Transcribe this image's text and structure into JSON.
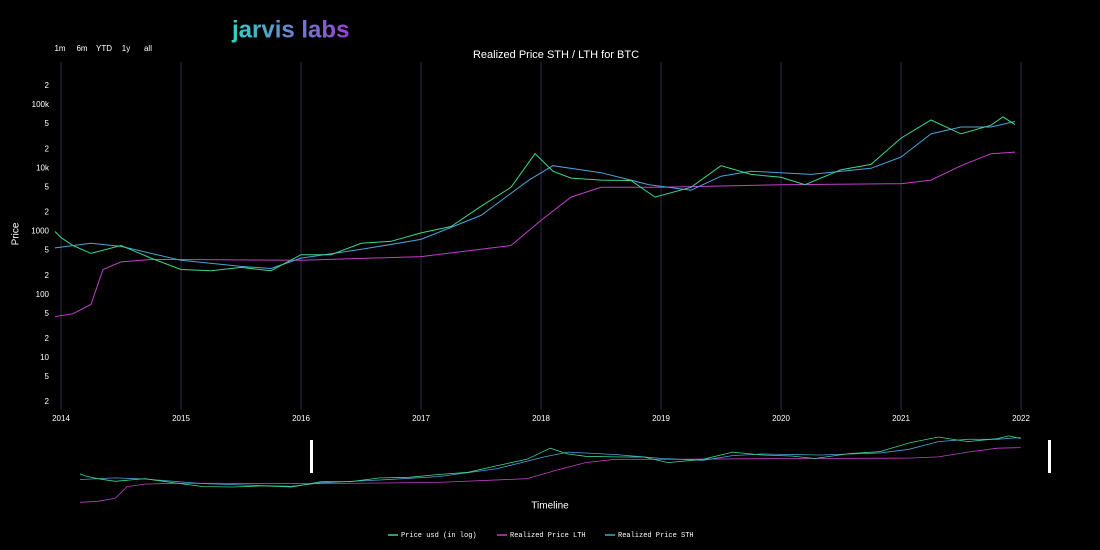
{
  "logo": "jarvis labs",
  "range_buttons": [
    "1m",
    "6m",
    "YTD",
    "1y",
    "all"
  ],
  "chart_data": {
    "type": "line",
    "title": "Realized Price STH / LTH for BTC",
    "y_label": "Price",
    "x_label": "Timeline",
    "y_log": true,
    "grid": "x",
    "legend": "bottom",
    "xlim": [
      2013.95,
      2022.2
    ],
    "xticks": [
      2014,
      2015,
      2016,
      2017,
      2018,
      2019,
      2020,
      2021,
      2022
    ],
    "ylim": [
      1.5,
      480000
    ],
    "yticks": [
      2,
      5,
      10,
      {
        "value": 20,
        "label": "2"
      },
      {
        "value": 50,
        "label": "5"
      },
      100,
      {
        "value": 200,
        "label": "2"
      },
      {
        "value": 500,
        "label": "5"
      },
      1000,
      {
        "value": 2000,
        "label": "2"
      },
      {
        "value": 5000,
        "label": "5"
      },
      {
        "value": 10000,
        "label": "10k"
      },
      {
        "value": 20000,
        "label": "2"
      },
      {
        "value": 50000,
        "label": "5"
      },
      {
        "value": 100000,
        "label": "100k"
      },
      {
        "value": 200000,
        "label": "2"
      }
    ],
    "series": [
      {
        "name": "Price usd (in log)",
        "color": "#3dd68c",
        "x": [
          2013.95,
          2014.0,
          2014.1,
          2014.25,
          2014.5,
          2014.75,
          2015.0,
          2015.25,
          2015.5,
          2015.75,
          2016.0,
          2016.25,
          2016.5,
          2016.75,
          2017.0,
          2017.25,
          2017.5,
          2017.75,
          2017.95,
          2018.1,
          2018.25,
          2018.5,
          2018.75,
          2018.95,
          2019.25,
          2019.5,
          2019.75,
          2020.0,
          2020.2,
          2020.5,
          2020.75,
          2021.0,
          2021.25,
          2021.5,
          2021.75,
          2021.85,
          2021.95
        ],
        "values": [
          1000,
          800,
          600,
          450,
          600,
          380,
          250,
          240,
          270,
          240,
          430,
          430,
          650,
          700,
          950,
          1200,
          2500,
          5000,
          17000,
          9000,
          7000,
          6500,
          6400,
          3500,
          5000,
          11000,
          8000,
          7200,
          5500,
          9500,
          11500,
          30000,
          58000,
          35000,
          48000,
          65000,
          49000
        ]
      },
      {
        "name": "Realized Price LTH",
        "color": "#c23fc7",
        "x": [
          2013.95,
          2014.1,
          2014.25,
          2014.35,
          2014.5,
          2014.75,
          2015.0,
          2016.0,
          2017.0,
          2017.75,
          2018.0,
          2018.25,
          2018.5,
          2019.0,
          2020.0,
          2021.0,
          2021.25,
          2021.5,
          2021.75,
          2021.95
        ],
        "values": [
          45,
          50,
          70,
          250,
          330,
          360,
          360,
          350,
          400,
          600,
          1500,
          3500,
          5000,
          5000,
          5500,
          5700,
          6500,
          11000,
          17000,
          18000
        ]
      },
      {
        "name": "Realized Price STH",
        "color": "#4aa3d9",
        "x": [
          2013.95,
          2014.25,
          2014.5,
          2015.0,
          2015.5,
          2015.75,
          2016.0,
          2016.5,
          2017.0,
          2017.5,
          2017.9,
          2018.1,
          2018.5,
          2018.9,
          2019.25,
          2019.5,
          2019.75,
          2020.25,
          2020.75,
          2021.0,
          2021.25,
          2021.5,
          2021.75,
          2021.95
        ],
        "values": [
          550,
          650,
          580,
          350,
          280,
          260,
          380,
          520,
          750,
          1800,
          6500,
          11000,
          8500,
          5500,
          4500,
          7500,
          9000,
          8000,
          10000,
          15000,
          35000,
          45000,
          45000,
          55000
        ]
      }
    ]
  }
}
